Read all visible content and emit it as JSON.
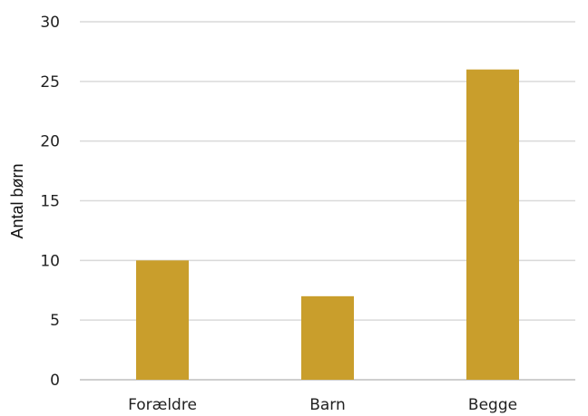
{
  "chart_data": {
    "type": "bar",
    "categories": [
      "Forældre",
      "Barn",
      "Begge"
    ],
    "values": [
      10,
      7,
      26
    ],
    "ylabel": "Antal børn",
    "ylim": [
      0,
      30
    ],
    "yticks": [
      0,
      5,
      10,
      15,
      20,
      25,
      30
    ],
    "grid": true,
    "colors": {
      "bar": "#c99e2c"
    }
  }
}
